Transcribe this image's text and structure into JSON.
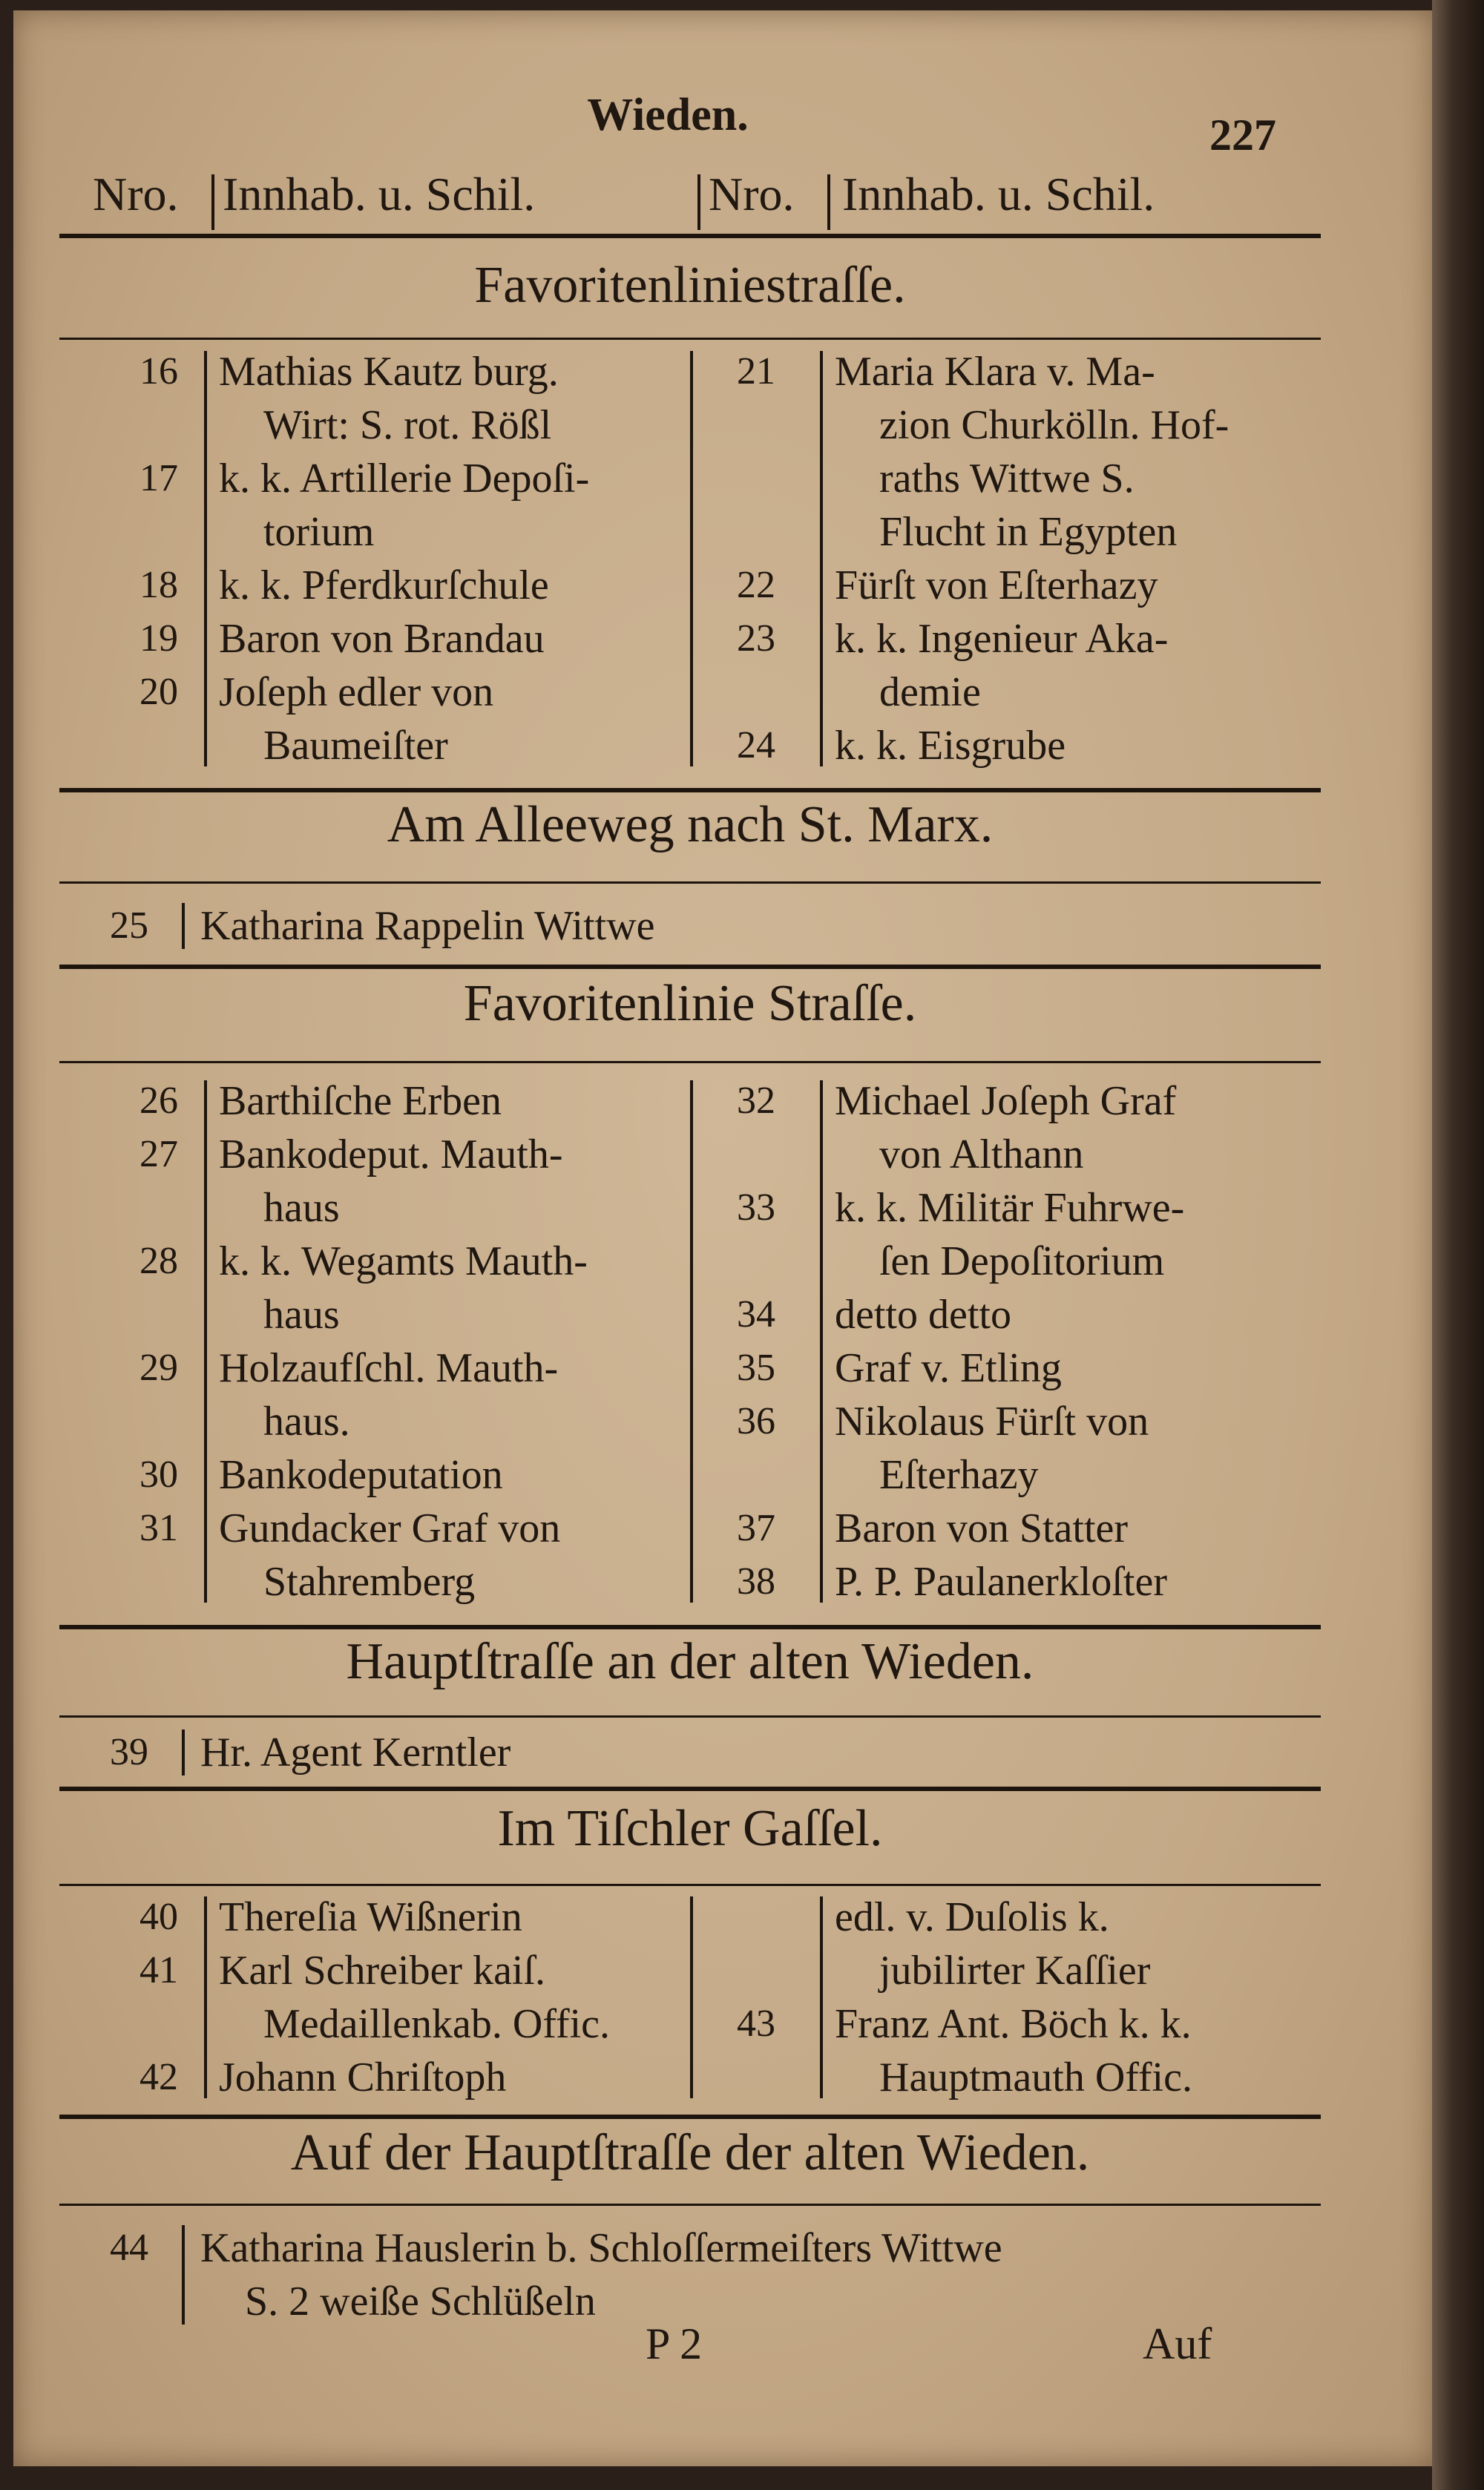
{
  "running_head": "Wieden.",
  "page_number": "227",
  "column_headers": [
    "Nro.",
    "Innhab. u. Schil.",
    "Nro.",
    "Innhab. u. Schil."
  ],
  "sections": [
    {
      "title": "Favoritenliniestraſſe.",
      "left": [
        {
          "no": "16",
          "lines": [
            "Mathias Kautz burg.",
            "Wirt: S. rot. Rößl"
          ]
        },
        {
          "no": "17",
          "lines": [
            "k. k. Artillerie Depoſi-",
            "torium"
          ]
        },
        {
          "no": "18",
          "lines": [
            "k. k. Pferdkurſchule"
          ]
        },
        {
          "no": "19",
          "lines": [
            "Baron von Brandau"
          ]
        },
        {
          "no": "20",
          "lines": [
            "Joſeph edler von",
            "Baumeiſter"
          ]
        }
      ],
      "right": [
        {
          "no": "21",
          "lines": [
            "Maria Klara v. Ma-",
            "zion Churkölln. Hof-",
            "raths Wittwe S.",
            "Flucht in Egypten"
          ]
        },
        {
          "no": "22",
          "lines": [
            "Fürſt von Eſterhazy"
          ]
        },
        {
          "no": "23",
          "lines": [
            "k. k. Ingenieur Aka-",
            "demie"
          ]
        },
        {
          "no": "24",
          "lines": [
            "k. k. Eisgrube"
          ]
        }
      ]
    },
    {
      "title": "Am Alleeweg nach St. Marx.",
      "single": {
        "no": "25",
        "lines": [
          "Katharina Rappelin Wittwe"
        ]
      }
    },
    {
      "title": "Favoritenlinie Straſſe.",
      "left": [
        {
          "no": "26",
          "lines": [
            "Barthiſche Erben"
          ]
        },
        {
          "no": "27",
          "lines": [
            "Bankodeput. Mauth-",
            "haus"
          ]
        },
        {
          "no": "28",
          "lines": [
            "k. k. Wegamts Mauth-",
            "haus"
          ]
        },
        {
          "no": "29",
          "lines": [
            "Holzaufſchl. Mauth-",
            "haus."
          ]
        },
        {
          "no": "30",
          "lines": [
            "Bankodeputation"
          ]
        },
        {
          "no": "31",
          "lines": [
            "Gundacker Graf von",
            "Stahremberg"
          ]
        }
      ],
      "right": [
        {
          "no": "32",
          "lines": [
            "Michael Joſeph Graf",
            "von Althann"
          ]
        },
        {
          "no": "33",
          "lines": [
            "k. k. Militär Fuhrwe-",
            "ſen Depoſitorium"
          ]
        },
        {
          "no": "34",
          "lines": [
            "detto        detto"
          ]
        },
        {
          "no": "35",
          "lines": [
            "Graf v. Etling"
          ]
        },
        {
          "no": "36",
          "lines": [
            "Nikolaus Fürſt von",
            "Eſterhazy"
          ]
        },
        {
          "no": "37",
          "lines": [
            "Baron von Statter"
          ]
        },
        {
          "no": "38",
          "lines": [
            "P. P. Paulanerkloſter"
          ]
        }
      ]
    },
    {
      "title": "Hauptſtraſſe an der alten Wieden.",
      "single": {
        "no": "39",
        "lines": [
          "Hr. Agent Kerntler"
        ]
      }
    },
    {
      "title": "Im Tiſchler Gaſſel.",
      "left": [
        {
          "no": "40",
          "lines": [
            "Thereſia Wißnerin"
          ]
        },
        {
          "no": "41",
          "lines": [
            "Karl Schreiber kaiſ.",
            "Medaillenkab. Offic."
          ]
        },
        {
          "no": "42",
          "lines": [
            "Johann Chriſtoph"
          ]
        }
      ],
      "right": [
        {
          "no": "",
          "lines": [
            "edl. v. Duſolis k.",
            "jubilirter Kaſſier"
          ]
        },
        {
          "no": "43",
          "lines": [
            "Franz Ant. Böch k. k.",
            "Hauptmauth Offic."
          ]
        }
      ]
    },
    {
      "title": "Auf der Hauptſtraſſe der alten Wieden.",
      "single": {
        "no": "44",
        "lines": [
          "Katharina Hauslerin b. Schloſſermeiſters Wittwe",
          "S. 2 weiße Schlüßeln"
        ]
      }
    }
  ],
  "footer": {
    "signature": "P 2",
    "catchword": "Auf"
  },
  "colors": {
    "paper": "#c4a987",
    "ink": "#1f1710",
    "background": "#2a2019"
  }
}
